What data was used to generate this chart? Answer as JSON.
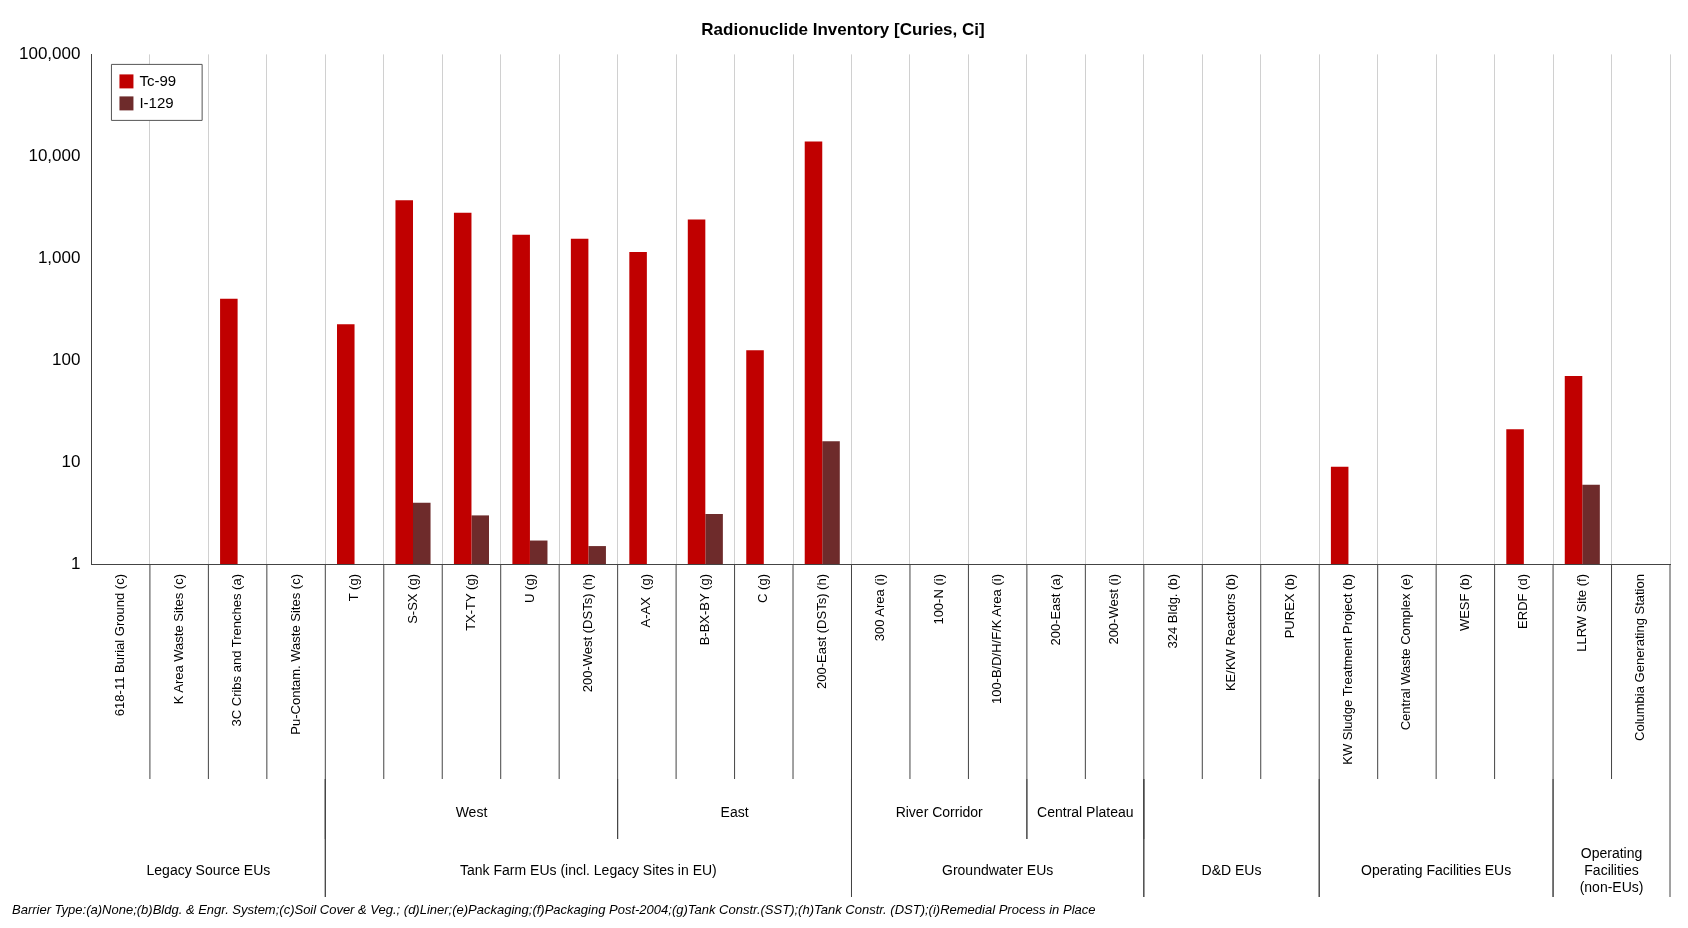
{
  "chart_data": {
    "type": "bar",
    "title": "Radionuclide Inventory [Curies, Ci]",
    "categories": [
      "618-11 Burial Ground (c)",
      "K Area Waste Sites (c)",
      "3C Cribs and Trenches (a)",
      "Pu-Contam. Waste Sites (c)",
      "T (g)",
      "S-SX (g)",
      "TX-TY (g)",
      "U (g)",
      "200-West (DSTs) (h)",
      "A-AX  (g)",
      "B-BX-BY (g)",
      "C (g)",
      "200-East (DSTs) (h)",
      "300 Area (i)",
      "100-N (i)",
      "100-B/D/H/F/K Area (i)",
      "200-East (a)",
      "200-West (i)",
      "324 Bldg. (b)",
      "KE/KW Reactors (b)",
      "PUREX (b)",
      "KW Sludge Treatment Project (b)",
      "Central Waste Complex (e)",
      "WESF (b)",
      "ERDF (d)",
      "LLRW Site (f)",
      "Columbia Generating Station"
    ],
    "series": [
      {
        "name": "Tc-99",
        "color": "#c00000",
        "values": [
          null,
          null,
          400,
          null,
          225,
          3700,
          2800,
          1700,
          1550,
          1150,
          2400,
          125,
          14000,
          null,
          null,
          null,
          null,
          null,
          null,
          null,
          null,
          9,
          null,
          null,
          21,
          70,
          null
        ]
      },
      {
        "name": "I-129",
        "color": "#6e2b2b",
        "values": [
          null,
          null,
          null,
          null,
          null,
          4,
          3,
          1.7,
          1.5,
          null,
          3.1,
          null,
          16,
          null,
          null,
          null,
          null,
          null,
          null,
          null,
          null,
          null,
          null,
          null,
          null,
          6,
          null
        ]
      }
    ],
    "log": "y",
    "ylim": [
      1,
      100000
    ],
    "yticks": [
      1,
      10,
      100,
      {
        "value": 1000,
        "label": "1,000"
      },
      {
        "value": 10000,
        "label": "10,000"
      },
      {
        "value": 100000,
        "label": "100,000"
      }
    ],
    "grid": "x",
    "legend": "top left",
    "annotations": [
      "West",
      "East",
      "River Corridor",
      "Central Plateau",
      "Legacy Source EUs",
      "Tank Farm EUs (incl. Legacy Sites in EU)",
      "Groundwater EUs",
      "D&D EUs",
      "Operating Facilities EUs",
      "Operating Facilities (non-EUs)",
      "Barrier Type:(a)None;(b)Bldg. & Engr. System;(c)Soil Cover & Veg.; (d)Liner;(e)Packaging;(f)Packaging Post-2004;(g)Tank Constr.(SST);(h)Tank Constr. (DST);(i)Remedial Process in Place"
    ]
  }
}
